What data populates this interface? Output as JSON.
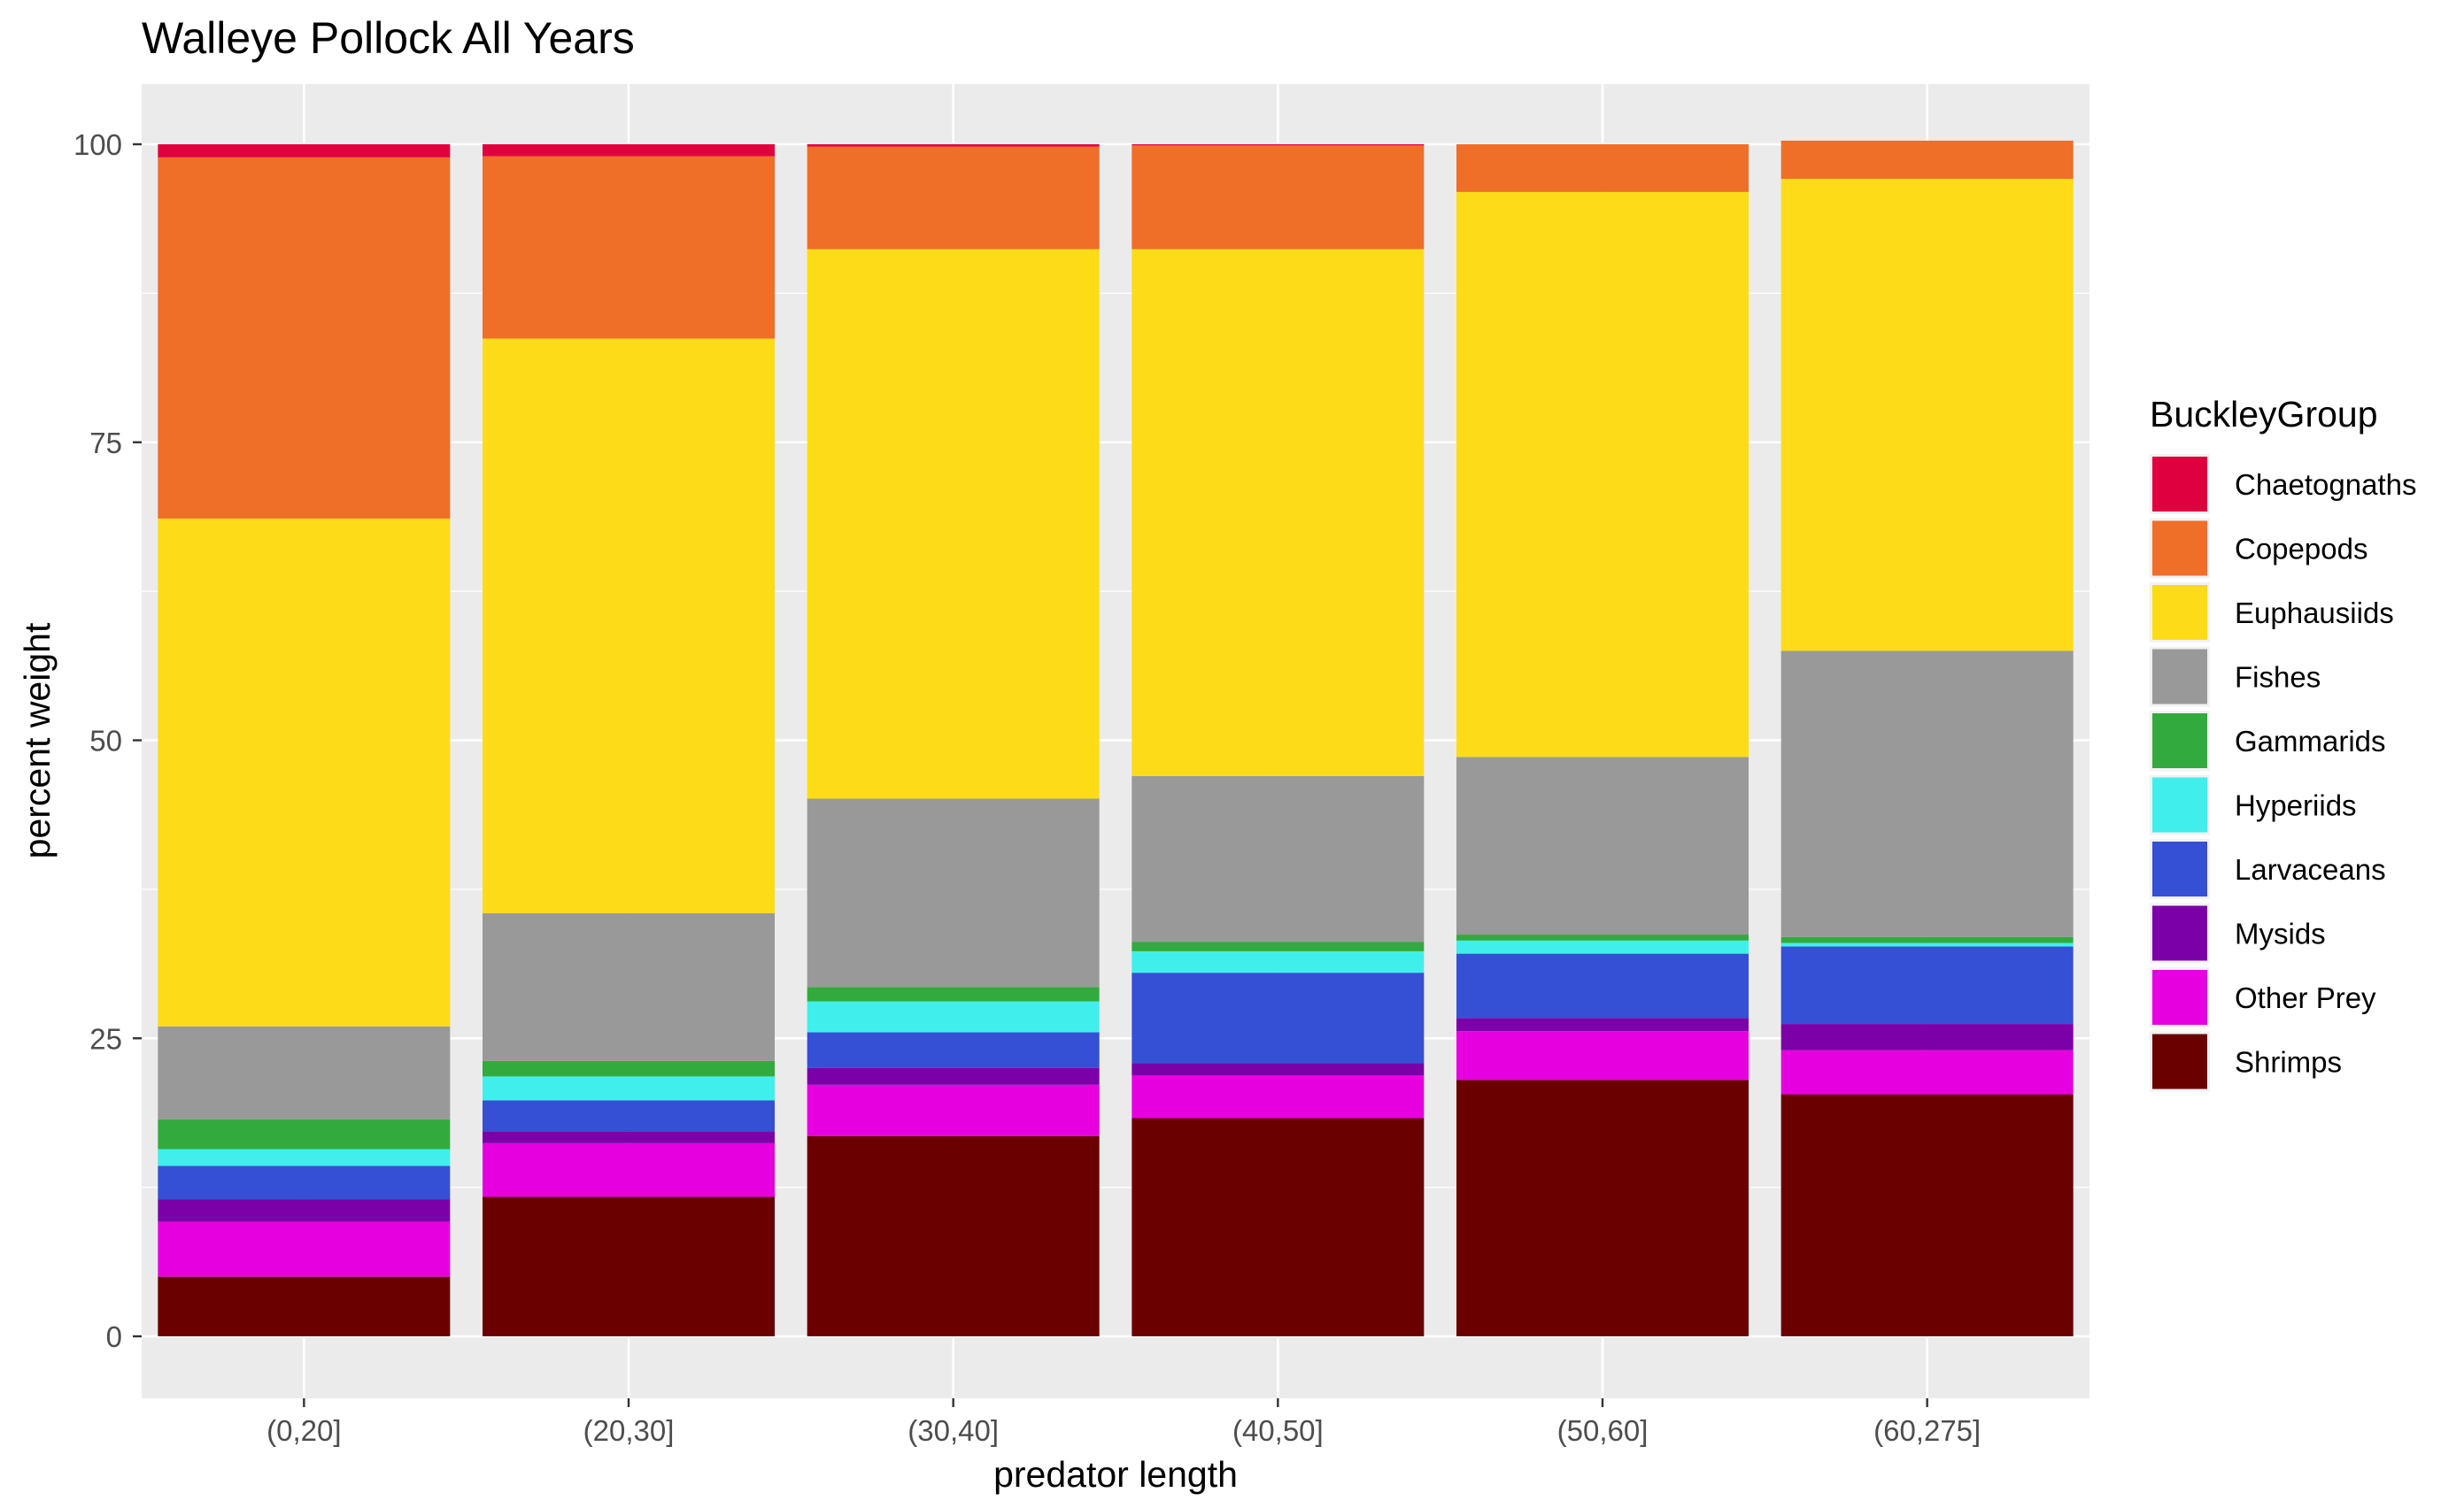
{
  "chart_data": {
    "type": "bar",
    "stacked": true,
    "title": "Walleye Pollock All Years",
    "xlabel": "predator length",
    "ylabel": "percent weight",
    "ylim": [
      0,
      100
    ],
    "yticks": [
      0,
      25,
      50,
      75,
      100
    ],
    "grid": true,
    "legend_position": "right",
    "legend_title": "BuckleyGroup",
    "categories": [
      "(0,20]",
      "(20,30]",
      "(30,40]",
      "(40,50]",
      "(50,60]",
      "(60,275]"
    ],
    "series": [
      {
        "name": "Shrimps",
        "color": "#6b0000",
        "values": [
          5.0,
          11.7,
          16.8,
          18.3,
          21.5,
          20.3
        ]
      },
      {
        "name": "Other Prey",
        "color": "#e600e0",
        "values": [
          4.6,
          4.5,
          4.3,
          3.6,
          4.1,
          3.7
        ]
      },
      {
        "name": "Mysids",
        "color": "#7b00a8",
        "values": [
          1.9,
          1.0,
          1.4,
          1.0,
          1.1,
          2.2
        ]
      },
      {
        "name": "Larvaceans",
        "color": "#3550d4",
        "values": [
          2.8,
          2.6,
          3.0,
          7.6,
          5.4,
          6.5
        ]
      },
      {
        "name": "Hyperiids",
        "color": "#40efeb",
        "values": [
          1.4,
          2.0,
          2.6,
          1.8,
          1.1,
          0.3
        ]
      },
      {
        "name": "Gammarids",
        "color": "#33aa3d",
        "values": [
          2.5,
          1.3,
          1.2,
          0.8,
          0.5,
          0.5
        ]
      },
      {
        "name": "Fishes",
        "color": "#999999",
        "values": [
          7.8,
          12.4,
          15.8,
          13.9,
          14.9,
          24.0
        ]
      },
      {
        "name": "Euphausiids",
        "color": "#fddc17",
        "values": [
          42.6,
          48.2,
          46.1,
          44.2,
          47.4,
          39.6
        ]
      },
      {
        "name": "Copepods",
        "color": "#ef6e28",
        "values": [
          30.3,
          15.3,
          8.6,
          8.7,
          4.0,
          3.2
        ]
      },
      {
        "name": "Chaetognaths",
        "color": "#df0040",
        "values": [
          1.1,
          1.0,
          0.2,
          0.1,
          0.0,
          0.0
        ]
      }
    ],
    "legend_order": [
      "Chaetognaths",
      "Copepods",
      "Euphausiids",
      "Fishes",
      "Gammarids",
      "Hyperiids",
      "Larvaceans",
      "Mysids",
      "Other Prey",
      "Shrimps"
    ]
  }
}
